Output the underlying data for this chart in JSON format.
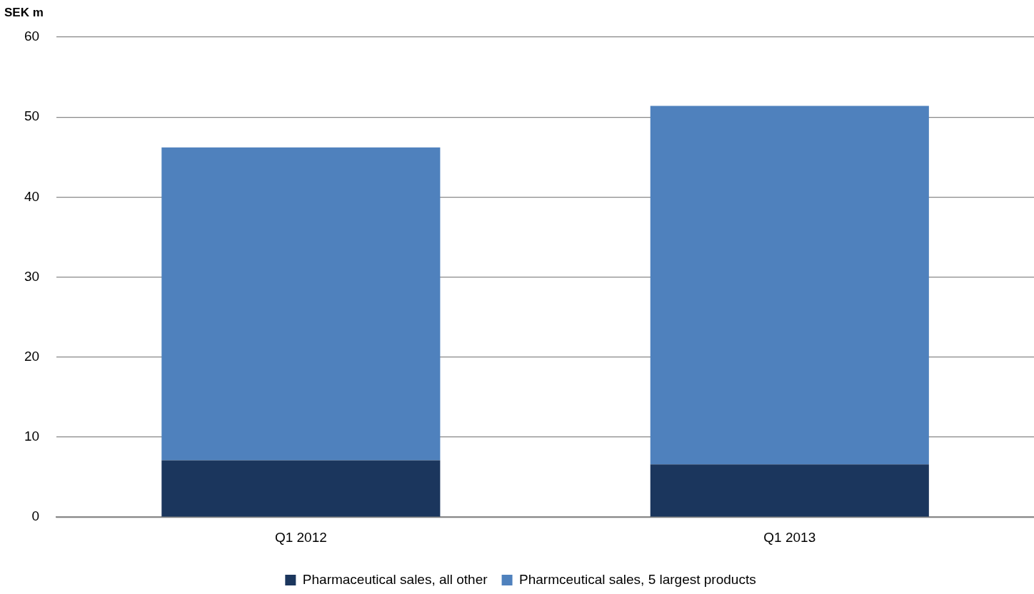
{
  "chart_data": {
    "type": "bar",
    "stacked": true,
    "ylabel": "SEK m",
    "categories": [
      "Q1 2012",
      "Q1 2013"
    ],
    "series": [
      {
        "name": "Pharmaceutical sales, all other",
        "color": "#1b365d",
        "values": [
          7.1,
          6.6
        ]
      },
      {
        "name": "Pharmceutical sales, 5 largest products",
        "color": "#4f81bd",
        "values": [
          39.1,
          44.8
        ]
      }
    ],
    "ylim": [
      0,
      60
    ],
    "yticks": [
      0,
      10,
      20,
      30,
      40,
      50,
      60
    ],
    "grid": "y",
    "legend": "bottom"
  }
}
